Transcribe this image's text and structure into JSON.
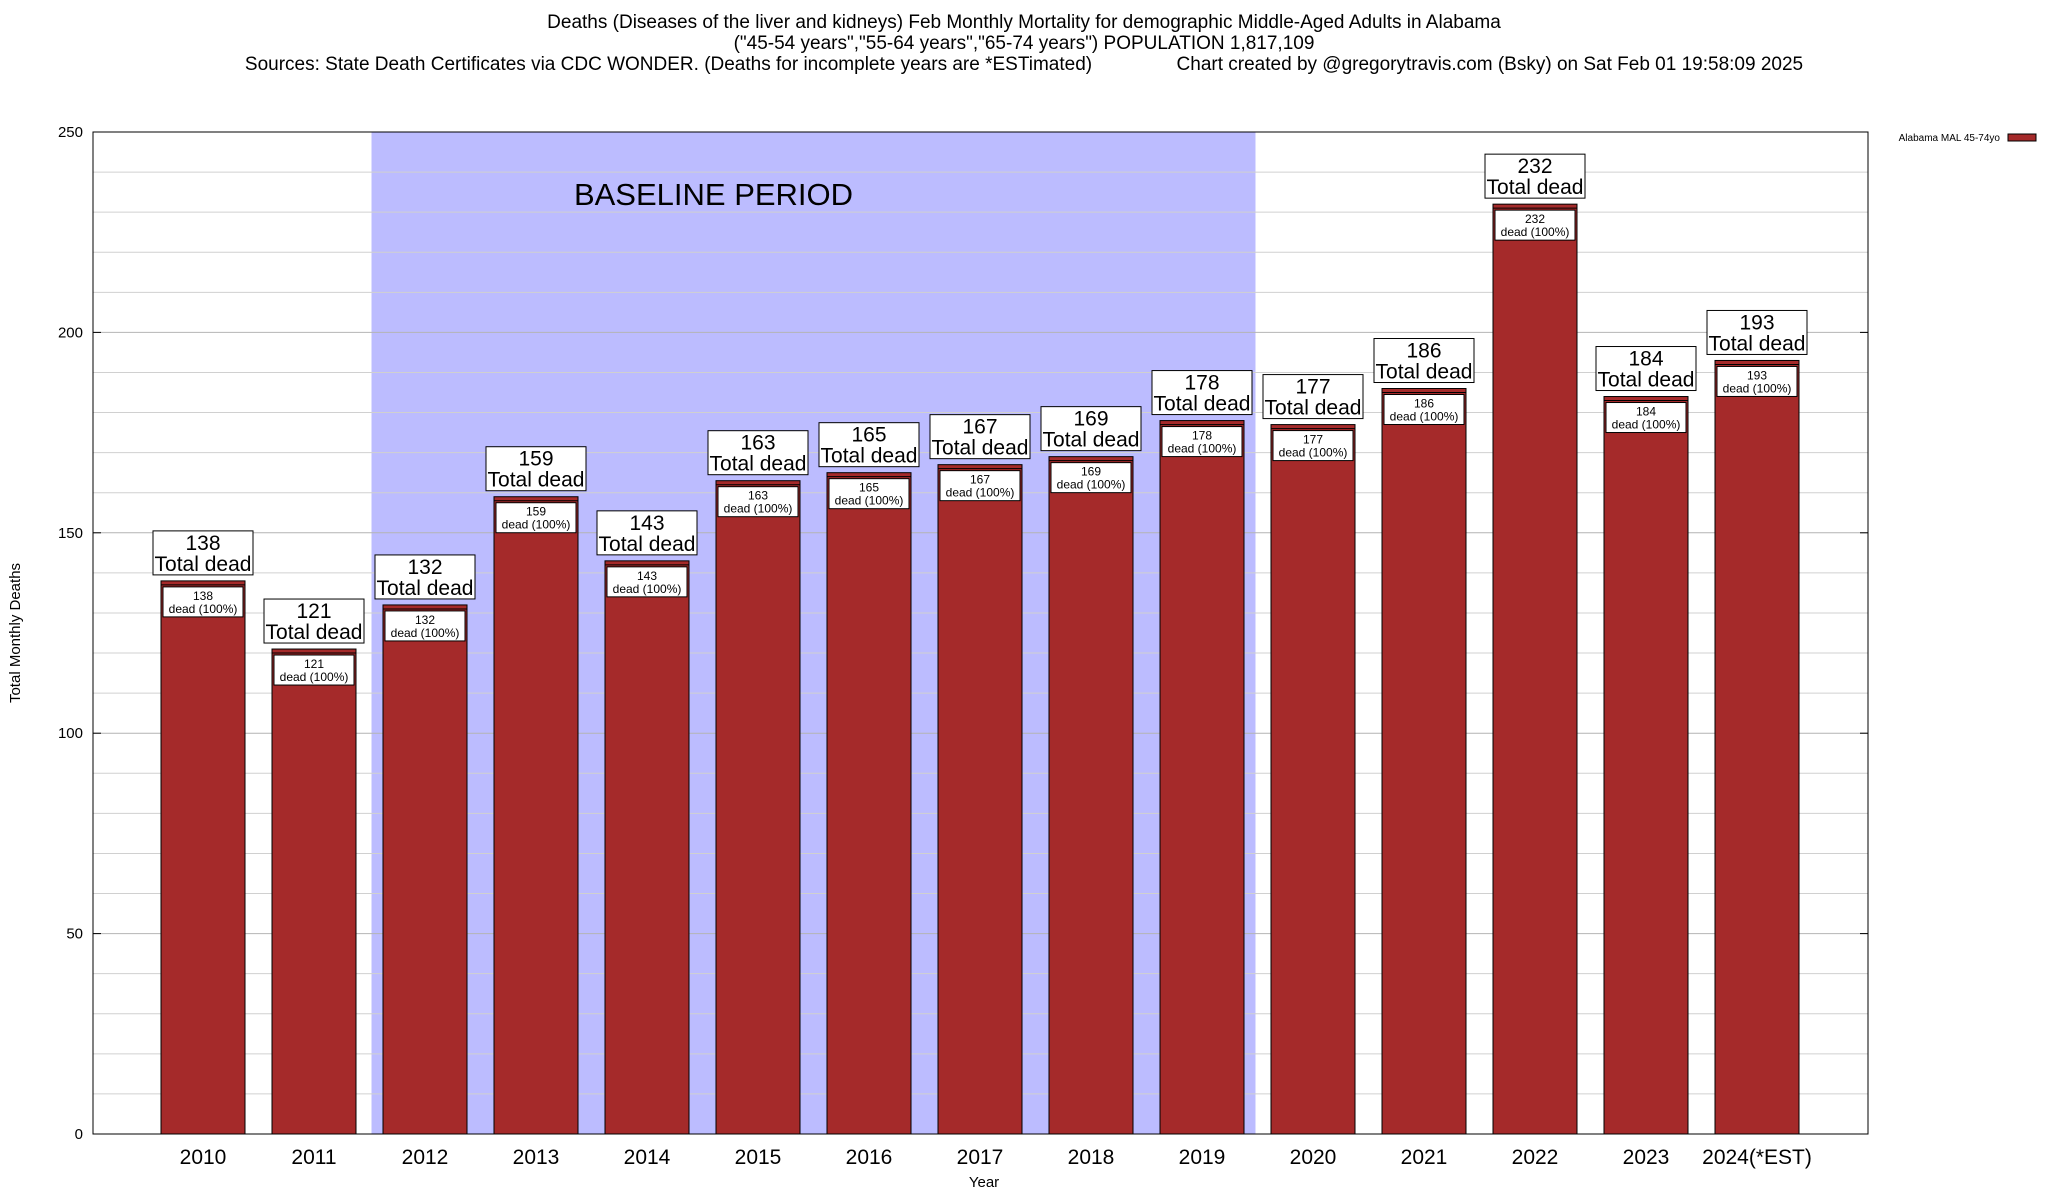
{
  "chart_data": {
    "type": "bar",
    "title_lines": [
      "Deaths (Diseases of the liver and kidneys) Feb Monthly Mortality for demographic Middle-Aged Adults in Alabama",
      "(\"45-54 years\",\"55-64 years\",\"65-74 years\") POPULATION 1,817,109",
      "Sources: State Death Certificates via CDC WONDER. (Deaths for incomplete years are *ESTimated)                Chart created by @gregorytravis.com (Bsky) on Sat Feb 01 19:58:09 2025"
    ],
    "xlabel": "Year",
    "ylabel": "Total Monthly Deaths",
    "ylim": [
      0,
      250
    ],
    "y_ticks": [
      0,
      50,
      100,
      150,
      200,
      250
    ],
    "grid": true,
    "categories": [
      "2010",
      "2011",
      "2012",
      "2013",
      "2014",
      "2015",
      "2016",
      "2017",
      "2018",
      "2019",
      "2020",
      "2021",
      "2022",
      "2023",
      "2024(*EST)"
    ],
    "series": [
      {
        "name": "Alabama MAL 45-74yo",
        "values": [
          138,
          121,
          132,
          159,
          143,
          163,
          165,
          167,
          169,
          178,
          177,
          186,
          232,
          184,
          193
        ]
      }
    ],
    "top_label_suffix": "Total dead",
    "inner_label_suffix": "dead (100%)",
    "baseline_period": {
      "label": "BASELINE PERIOD",
      "start": "2012",
      "end": "2019"
    },
    "legend": {
      "position": "top-right",
      "entries": [
        "Alabama MAL 45-74yo"
      ]
    },
    "colors": {
      "bar": "#a52a2a",
      "baseline": "#bcbcff",
      "grid": "#c8c8c8"
    }
  }
}
